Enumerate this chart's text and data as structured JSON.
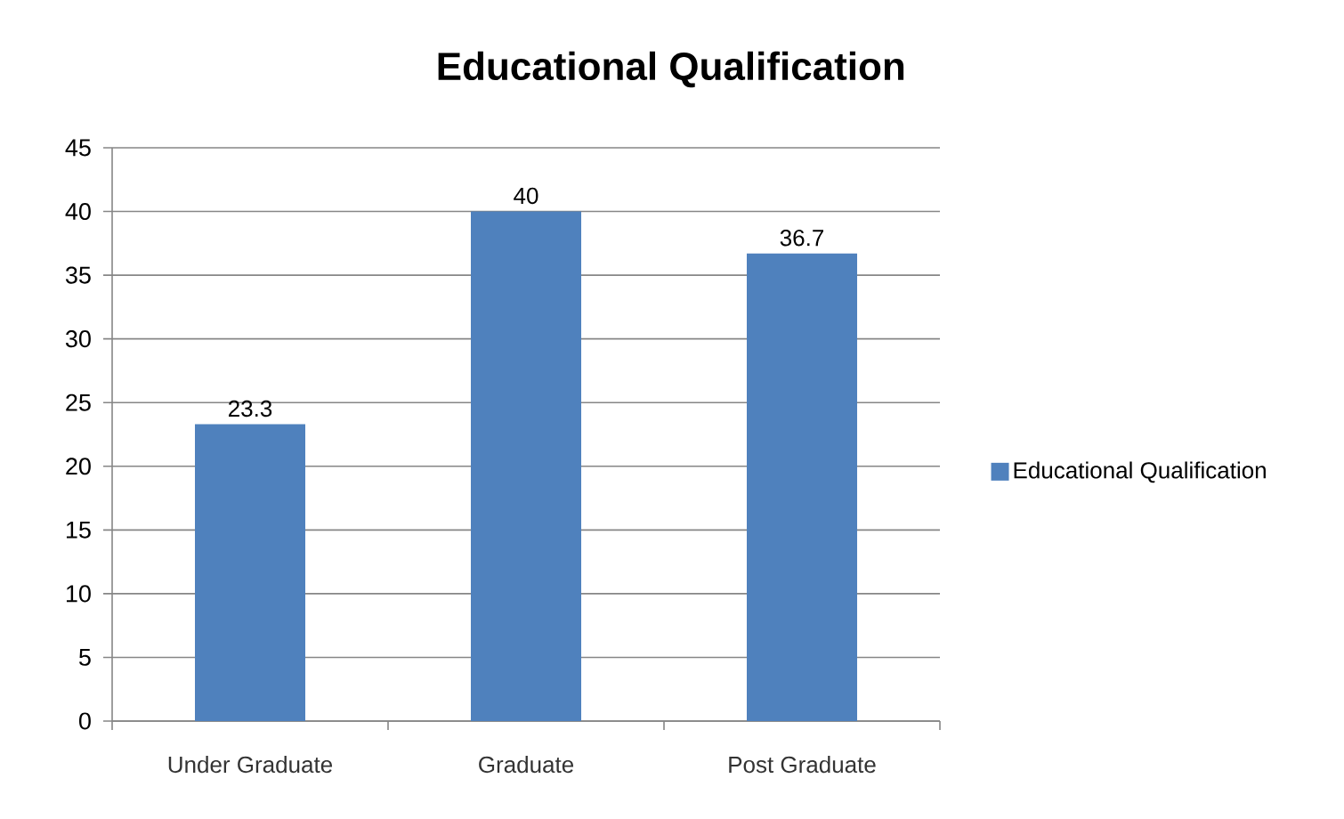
{
  "chart_data": {
    "type": "bar",
    "title": "Educational Qualification",
    "categories": [
      "Under Graduate",
      "Graduate",
      "Post Graduate"
    ],
    "series": [
      {
        "name": "Educational Qualification",
        "color": "#4f81bd",
        "values": [
          23.3,
          40,
          36.7
        ]
      }
    ],
    "ylim": [
      0,
      45
    ],
    "yticks": [
      0,
      5,
      10,
      15,
      20,
      25,
      30,
      35,
      40,
      45
    ],
    "grid": "y",
    "legend": "right",
    "data_labels": true
  }
}
